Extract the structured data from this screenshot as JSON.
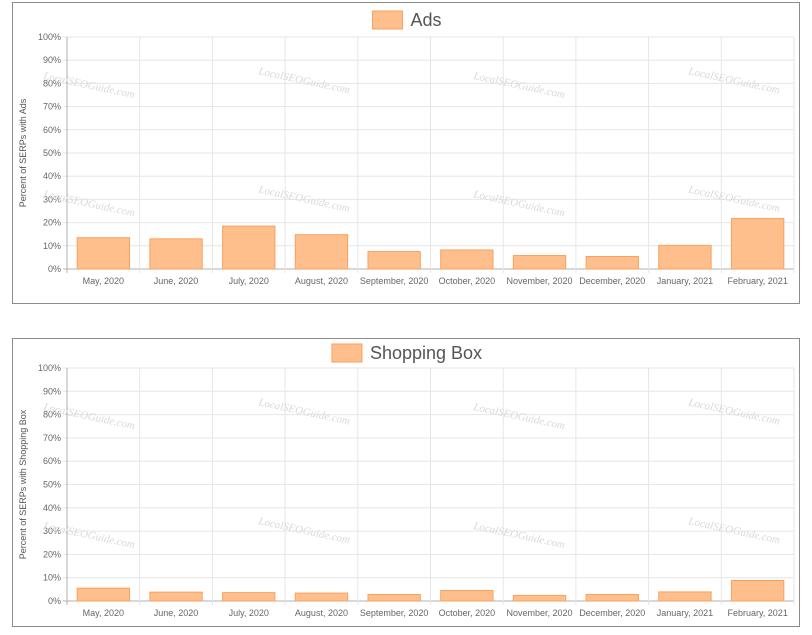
{
  "watermark": "LocalSEOGuide.com",
  "colors": {
    "bar_fill": "#ffbf8c",
    "bar_stroke": "#f9a15e",
    "grid": "#e6e6e6",
    "axis": "#b0b0b0"
  },
  "chart_data": [
    {
      "type": "bar",
      "legend": "Ads",
      "legend_position": "top-center",
      "ylabel": "Percent of SERPs with Ads",
      "categories": [
        "May, 2020",
        "June, 2020",
        "July, 2020",
        "August, 2020",
        "September, 2020",
        "October, 2020",
        "November, 2020",
        "December, 2020",
        "January, 2021",
        "February, 2021"
      ],
      "series": [
        {
          "name": "Ads",
          "values": [
            13.5,
            13.0,
            18.5,
            14.8,
            7.5,
            8.2,
            5.8,
            5.4,
            10.2,
            21.8
          ]
        }
      ],
      "yticks": [
        "0%",
        "10%",
        "20%",
        "30%",
        "40%",
        "50%",
        "60%",
        "70%",
        "80%",
        "90%",
        "100%"
      ],
      "ylim": [
        0,
        100
      ],
      "grid": true
    },
    {
      "type": "bar",
      "legend": "Shopping Box",
      "legend_position": "top-center",
      "ylabel": "Percent of SERPs with Shopping Box",
      "categories": [
        "May, 2020",
        "June, 2020",
        "July, 2020",
        "August, 2020",
        "September, 2020",
        "October, 2020",
        "November, 2020",
        "December, 2020",
        "January, 2021",
        "February, 2021"
      ],
      "series": [
        {
          "name": "Shopping Box",
          "values": [
            5.5,
            3.8,
            3.6,
            3.4,
            2.8,
            4.5,
            2.4,
            2.8,
            3.9,
            8.8
          ]
        }
      ],
      "yticks": [
        "0%",
        "10%",
        "20%",
        "30%",
        "40%",
        "50%",
        "60%",
        "70%",
        "80%",
        "90%",
        "100%"
      ],
      "ylim": [
        0,
        100
      ],
      "grid": true
    }
  ]
}
